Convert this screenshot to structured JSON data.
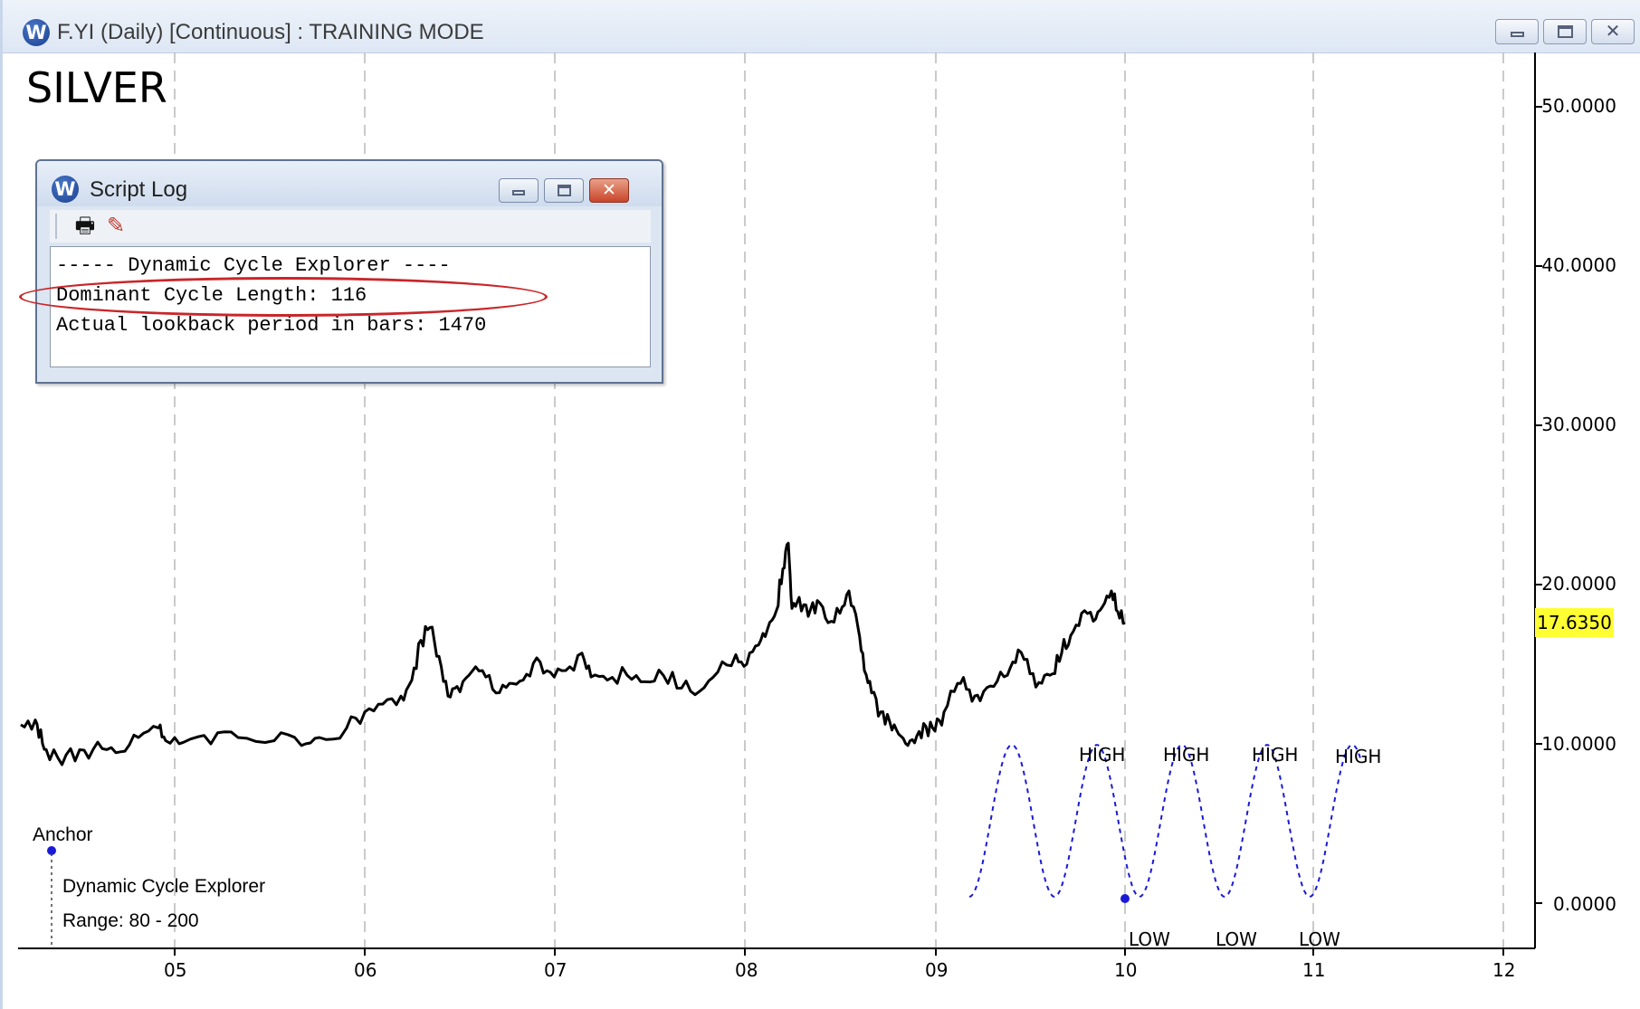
{
  "window": {
    "title": "F.YI (Daily) [Continuous] : TRAINING MODE",
    "app_icon": "W",
    "buttons": {
      "minimize": "minimize-icon",
      "maximize": "maximize-icon",
      "close": "✕"
    }
  },
  "chart": {
    "symbol": "SILVER",
    "y_axis_labels": [
      "50.0000",
      "40.0000",
      "30.0000",
      "20.0000",
      "10.0000",
      "0.0000"
    ],
    "last_price": "17.6350",
    "x_axis_labels": [
      "05",
      "06",
      "07",
      "08",
      "09",
      "10",
      "11",
      "12"
    ],
    "anchor_label": "Anchor",
    "indicator_name": "Dynamic Cycle Explorer",
    "indicator_range": "Range: 80 - 200",
    "cycle_high_labels": [
      "HIGH",
      "HIGH",
      "HIGH",
      "HIGH"
    ],
    "cycle_low_labels": [
      "LOW",
      "LOW",
      "LOW"
    ],
    "colors": {
      "price": "#000000",
      "cycle": "#1a1ad6",
      "grid": "#b0b0b0",
      "last_price_bg": "#ffff33",
      "highlight": "#c9262a"
    }
  },
  "script_log": {
    "title": "Script Log",
    "app_icon": "W",
    "toolbar": {
      "print_icon": "printer-icon",
      "clear_icon": "eraser-icon"
    },
    "lines": [
      "----- Dynamic Cycle Explorer ----",
      "Dominant Cycle Length: 116",
      "Actual lookback period in bars: 1470"
    ]
  }
}
